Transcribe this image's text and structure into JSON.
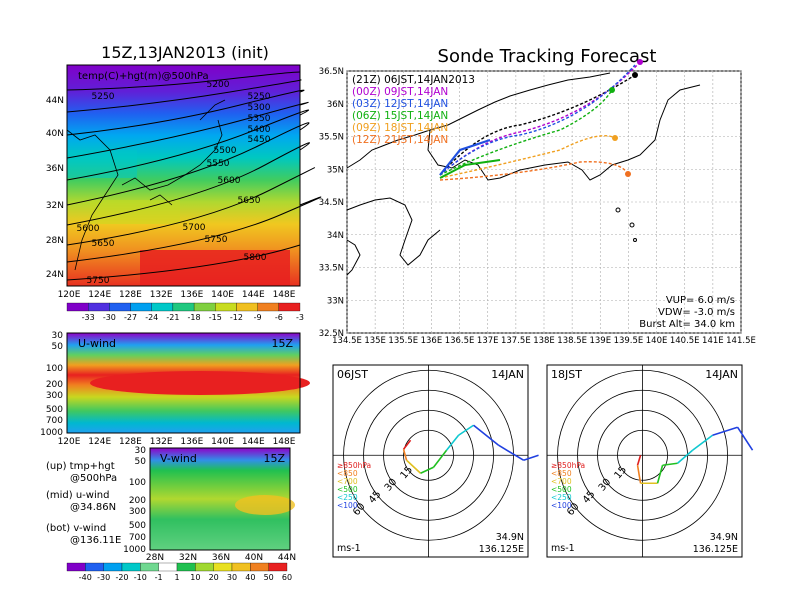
{
  "init_panel": {
    "title": "15Z,13JAN2013 (init)",
    "field_label": "temp(C)+hgt(m)@500hPa",
    "lat_labels": [
      "44N",
      "40N",
      "36N",
      "32N",
      "28N",
      "24N"
    ],
    "lon_labels": [
      "120E",
      "124E",
      "128E",
      "132E",
      "136E",
      "140E",
      "144E",
      "148E"
    ],
    "contour_labels": [
      "5200",
      "5250",
      "5250",
      "5300",
      "5350",
      "5400",
      "5450",
      "5500",
      "5550",
      "5600",
      "5650",
      "5600",
      "5700",
      "5650",
      "5750",
      "5800",
      "5750"
    ],
    "colorbar_ticks": [
      "-33",
      "-30",
      "-27",
      "-24",
      "-21",
      "-18",
      "-15",
      "-12",
      "-9",
      "-6",
      "-3"
    ],
    "colors": [
      "#8000c8",
      "#5030e0",
      "#2060f0",
      "#00a0f0",
      "#00c8c8",
      "#20c880",
      "#80d040",
      "#c8dc20",
      "#f0c020",
      "#f08020",
      "#e82020"
    ]
  },
  "uwind_panel": {
    "label": "U-wind",
    "time": "15Z",
    "p_labels": [
      "30",
      "50",
      "100",
      "200",
      "300",
      "500",
      "700",
      "1000"
    ],
    "lon_labels": [
      "120E",
      "124E",
      "128E",
      "132E",
      "136E",
      "140E",
      "144E",
      "148E"
    ]
  },
  "vwind_panel": {
    "label": "V-wind",
    "time": "15Z",
    "p_labels": [
      "30",
      "50",
      "100",
      "200",
      "300",
      "500",
      "700",
      "1000"
    ],
    "lat_labels": [
      "28N",
      "32N",
      "36N",
      "40N",
      "44N"
    ],
    "colorbar_ticks": [
      "-40",
      "-30",
      "-20",
      "-10",
      "-1",
      "1",
      "10",
      "20",
      "30",
      "40",
      "50",
      "60"
    ],
    "colors": [
      "#8000c8",
      "#2060f0",
      "#00a0f0",
      "#00c8c8",
      "#70d890",
      "#ffffff",
      "#20c050",
      "#a0d830",
      "#e8e020",
      "#f0c020",
      "#f08020",
      "#e82020"
    ]
  },
  "legend_text": {
    "up": "(up) tmp+hgt",
    "up2": "@500hPa",
    "mid": "(mid) u-wind",
    "mid2": "@34.86N",
    "bot": "(bot) v-wind",
    "bot2": "@136.11E"
  },
  "tracking_panel": {
    "title": "Sonde Tracking Forecast",
    "header": "(21Z) 06JST,14JAN2013",
    "runs": [
      {
        "label": "(00Z) 09JST,14JAN",
        "color": "#b000d0"
      },
      {
        "label": "(03Z) 12JST,14JAN",
        "color": "#2050e0"
      },
      {
        "label": "(06Z) 15JST,14JAN",
        "color": "#10b010"
      },
      {
        "label": "(09Z) 18JST,14JAN",
        "color": "#f0a020"
      },
      {
        "label": "(12Z) 21JST,14JAN",
        "color": "#f07020"
      }
    ],
    "lat_labels": [
      "36.5N",
      "36N",
      "35.5N",
      "35N",
      "34.5N",
      "34N",
      "33.5N",
      "33N",
      "32.5N"
    ],
    "lon_labels": [
      "134.5E",
      "135E",
      "135.5E",
      "136E",
      "136.5E",
      "137E",
      "137.5E",
      "138E",
      "138.5E",
      "139E",
      "139.5E",
      "140E",
      "140.5E",
      "141E",
      "141.5E"
    ],
    "vup": "VUP=  6.0  m/s",
    "vdw": "VDW= -3.0  m/s",
    "burst": "Burst Alt= 34.0  km"
  },
  "hodographs": [
    {
      "time": "06JST",
      "date": "14JAN",
      "lat": "34.9N",
      "lon": "136.125E",
      "unit": "ms-1"
    },
    {
      "time": "18JST",
      "date": "14JAN",
      "lat": "34.9N",
      "lon": "136.125E",
      "unit": "ms-1"
    }
  ],
  "hodo_rings": [
    "15",
    "30",
    "45",
    "60"
  ],
  "hodo_legend": [
    {
      "label": "≥850hPa",
      "color": "#e02020"
    },
    {
      "label": "<850",
      "color": "#f08020"
    },
    {
      "label": "<700",
      "color": "#e0c020"
    },
    {
      "label": "<500",
      "color": "#20c020"
    },
    {
      "label": "<250",
      "color": "#10c8d0"
    },
    {
      "label": "<100",
      "color": "#2040e0"
    }
  ]
}
